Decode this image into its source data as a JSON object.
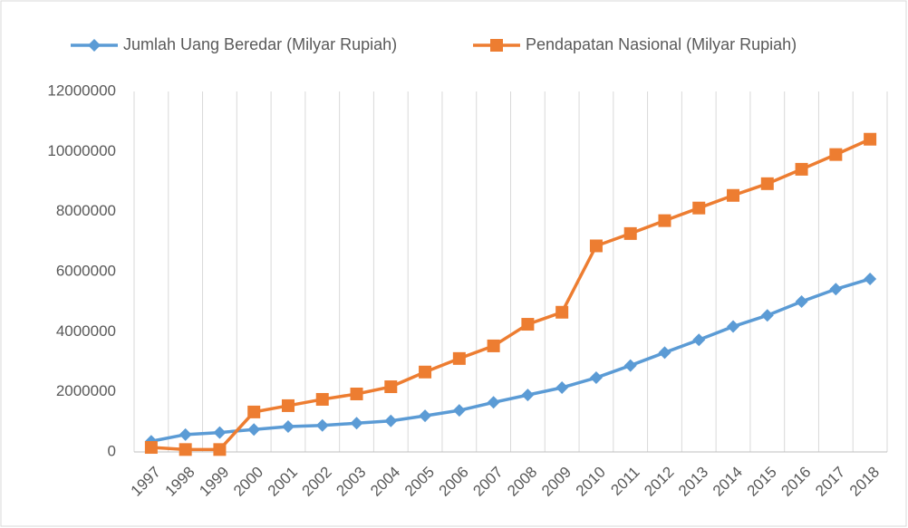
{
  "chart_data": {
    "type": "line",
    "categories": [
      "1997",
      "1998",
      "1999",
      "2000",
      "2001",
      "2002",
      "2003",
      "2004",
      "2005",
      "2006",
      "2007",
      "2008",
      "2009",
      "2010",
      "2011",
      "2012",
      "2013",
      "2014",
      "2015",
      "2016",
      "2017",
      "2018"
    ],
    "series": [
      {
        "name": "Jumlah Uang Beredar (Milyar Rupiah)",
        "color": "#5b9bd5",
        "marker": "diamond",
        "values": [
          355000,
          578000,
          646000,
          747000,
          844000,
          883000,
          956000,
          1033000,
          1203000,
          1382000,
          1650000,
          1896000,
          2141000,
          2471000,
          2877000,
          3307000,
          3730000,
          4174000,
          4546000,
          5005000,
          5419000,
          5760000
        ]
      },
      {
        "name": "Pendapatan Nasional (Milyar Rupiah)",
        "color": "#ed7d31",
        "marker": "square",
        "values": [
          150000,
          80000,
          80000,
          1330000,
          1540000,
          1750000,
          1930000,
          2170000,
          2660000,
          3110000,
          3530000,
          4250000,
          4650000,
          6860000,
          7270000,
          7700000,
          8120000,
          8540000,
          8930000,
          9410000,
          9900000,
          10410000
        ]
      }
    ],
    "ylim": [
      0,
      12000000
    ],
    "yticks": [
      0,
      2000000,
      4000000,
      6000000,
      8000000,
      10000000,
      12000000
    ],
    "x_grid": true,
    "legend": "top"
  }
}
